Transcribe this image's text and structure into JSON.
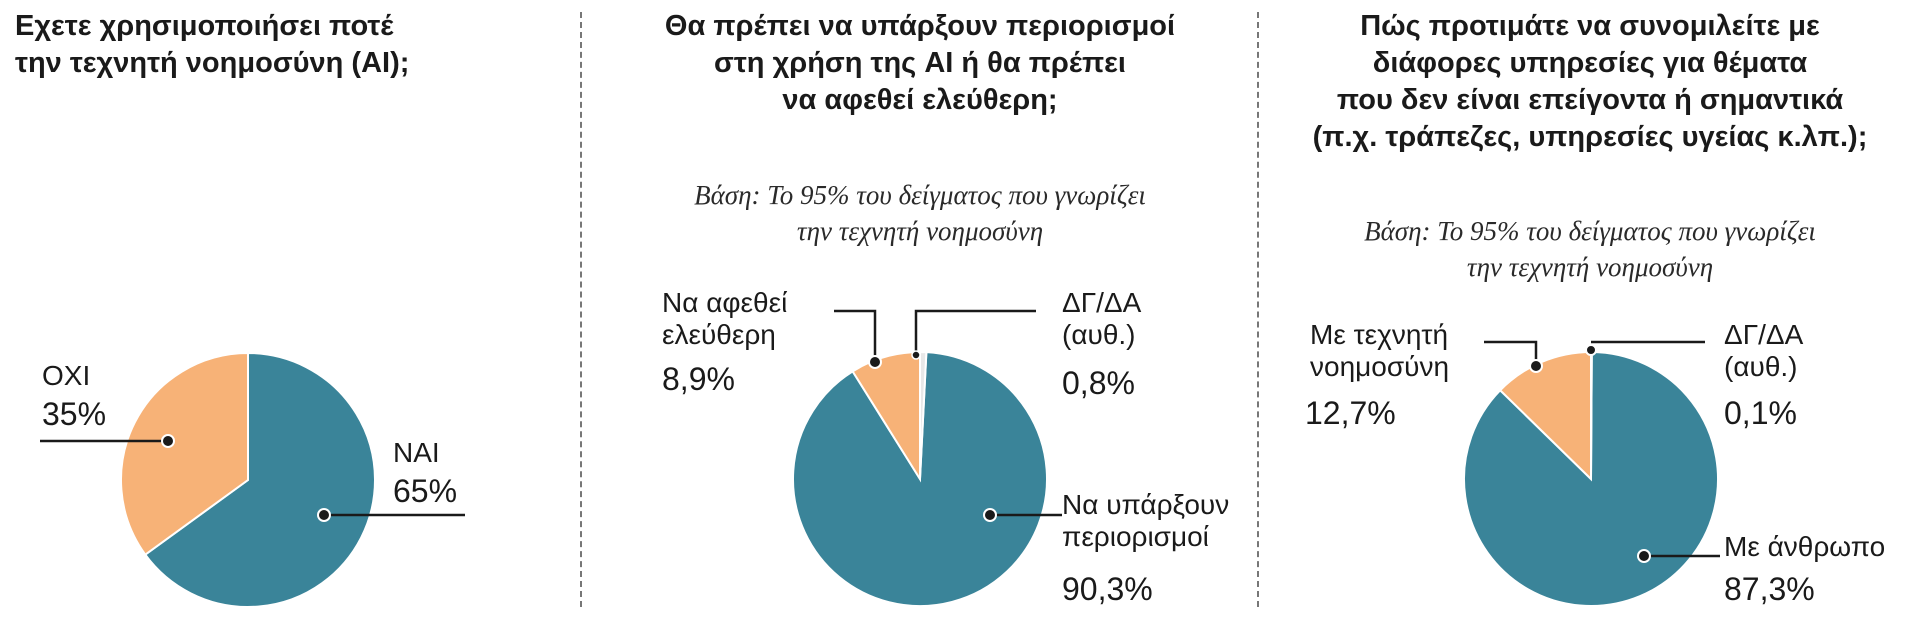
{
  "colors": {
    "teal": "#3a8499",
    "peach": "#f7b277",
    "divider": "#777777"
  },
  "chart_data": [
    {
      "type": "pie",
      "title": "Εχετε χρησιμοποιήσει ποτέ\nτην τεχνητή νοημοσύνη (AI);",
      "subtitle": "",
      "slices": [
        {
          "label": "ΝΑΙ",
          "value": 65,
          "value_text": "65%",
          "color": "#3a8499"
        },
        {
          "label": "ΟΧΙ",
          "value": 35,
          "value_text": "35%",
          "color": "#f7b277"
        }
      ]
    },
    {
      "type": "pie",
      "title": "Θα πρέπει να υπάρξουν περιορισμοί\nστη χρήση της AI ή θα πρέπει\nνα αφεθεί ελεύθερη;",
      "subtitle": "Βάση: Το 95% του δείγματος που γνωρίζει\nτην τεχνητή νοημοσύνη",
      "slices": [
        {
          "label": "Να υπάρξουν\nπεριορισμοί",
          "value": 90.3,
          "value_text": "90,3%",
          "color": "#3a8499"
        },
        {
          "label": "Να αφεθεί\nελεύθερη",
          "value": 8.9,
          "value_text": "8,9%",
          "color": "#f7b277"
        },
        {
          "label": "ΔΓ/ΔΑ\n(αυθ.)",
          "value": 0.8,
          "value_text": "0,8%",
          "color": "#e8e8e8"
        }
      ]
    },
    {
      "type": "pie",
      "title": "Πώς προτιμάτε να συνομιλείτε με\nδιάφορες υπηρεσίες για θέματα\nπου δεν είναι επείγοντα ή σημαντικά\n(π.χ. τράπεζες, υπηρεσίες υγείας κ.λπ.);",
      "subtitle": "Βάση: Το 95% του δείγματος που γνωρίζει\nτην τεχνητή νοημοσύνη",
      "slices": [
        {
          "label": "Με άνθρωπο",
          "value": 87.3,
          "value_text": "87,3%",
          "color": "#3a8499"
        },
        {
          "label": "Με τεχνητή\nνοημοσύνη",
          "value": 12.7,
          "value_text": "12,7%",
          "color": "#f7b277"
        },
        {
          "label": "ΔΓ/ΔΑ\n(αυθ.)",
          "value": 0.1,
          "value_text": "0,1%",
          "color": "#e8e8e8"
        }
      ]
    }
  ]
}
